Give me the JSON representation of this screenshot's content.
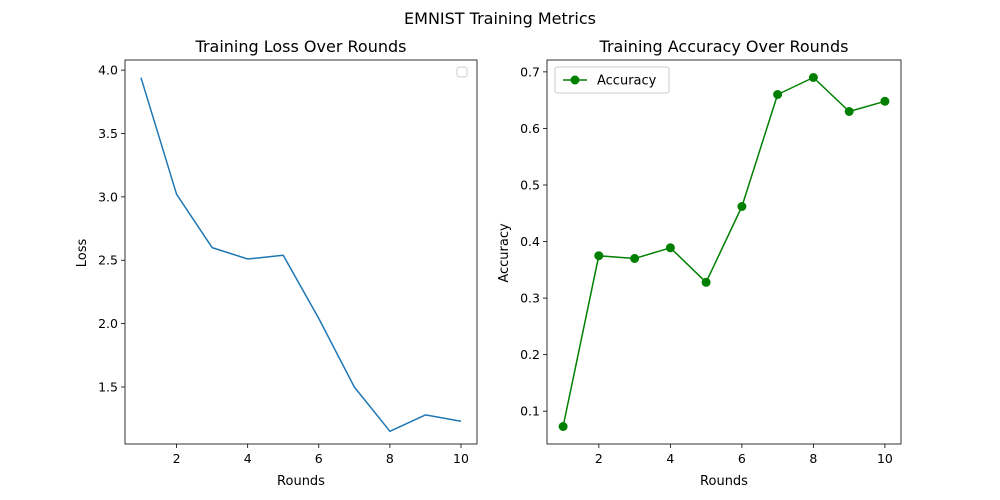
{
  "figure": {
    "suptitle": "EMNIST Training Metrics"
  },
  "chart_data": [
    {
      "type": "line",
      "title": "Training Loss Over Rounds",
      "xlabel": "Rounds",
      "ylabel": "Loss",
      "x": [
        1,
        2,
        3,
        4,
        5,
        6,
        7,
        8,
        9,
        10
      ],
      "series": [
        {
          "values": [
            3.94,
            3.02,
            2.6,
            2.51,
            2.54,
            2.04,
            1.5,
            1.15,
            1.28,
            1.23
          ],
          "color": "#1f77b4",
          "marker": "none"
        }
      ],
      "xlim": [
        0.55,
        10.45
      ],
      "ylim": [
        1.05,
        4.08
      ],
      "xticks": [
        2,
        4,
        6,
        8,
        10
      ],
      "xtick_labels": [
        "2",
        "4",
        "6",
        "8",
        "10"
      ],
      "yticks": [
        1.5,
        2.0,
        2.5,
        3.0,
        3.5,
        4.0
      ],
      "ytick_labels": [
        "1.5",
        "2.0",
        "2.5",
        "3.0",
        "3.5",
        "4.0"
      ],
      "grid": false,
      "legend": {
        "placement": "top-right",
        "entries": []
      }
    },
    {
      "type": "line",
      "title": "Training Accuracy Over Rounds",
      "xlabel": "Rounds",
      "ylabel": "Accuracy",
      "x": [
        1,
        2,
        3,
        4,
        5,
        6,
        7,
        8,
        9,
        10
      ],
      "series": [
        {
          "name": "Accuracy",
          "values": [
            0.073,
            0.375,
            0.37,
            0.389,
            0.328,
            0.462,
            0.66,
            0.69,
            0.63,
            0.648
          ],
          "color": "#008000",
          "marker": "circle"
        }
      ],
      "xlim": [
        0.55,
        10.45
      ],
      "ylim": [
        0.042,
        0.721
      ],
      "xticks": [
        2,
        4,
        6,
        8,
        10
      ],
      "xtick_labels": [
        "2",
        "4",
        "6",
        "8",
        "10"
      ],
      "yticks": [
        0.1,
        0.2,
        0.3,
        0.4,
        0.5,
        0.6,
        0.7
      ],
      "ytick_labels": [
        "0.1",
        "0.2",
        "0.3",
        "0.4",
        "0.5",
        "0.6",
        "0.7"
      ],
      "grid": false,
      "legend": {
        "placement": "top-left",
        "entries": [
          "Accuracy"
        ]
      }
    }
  ]
}
